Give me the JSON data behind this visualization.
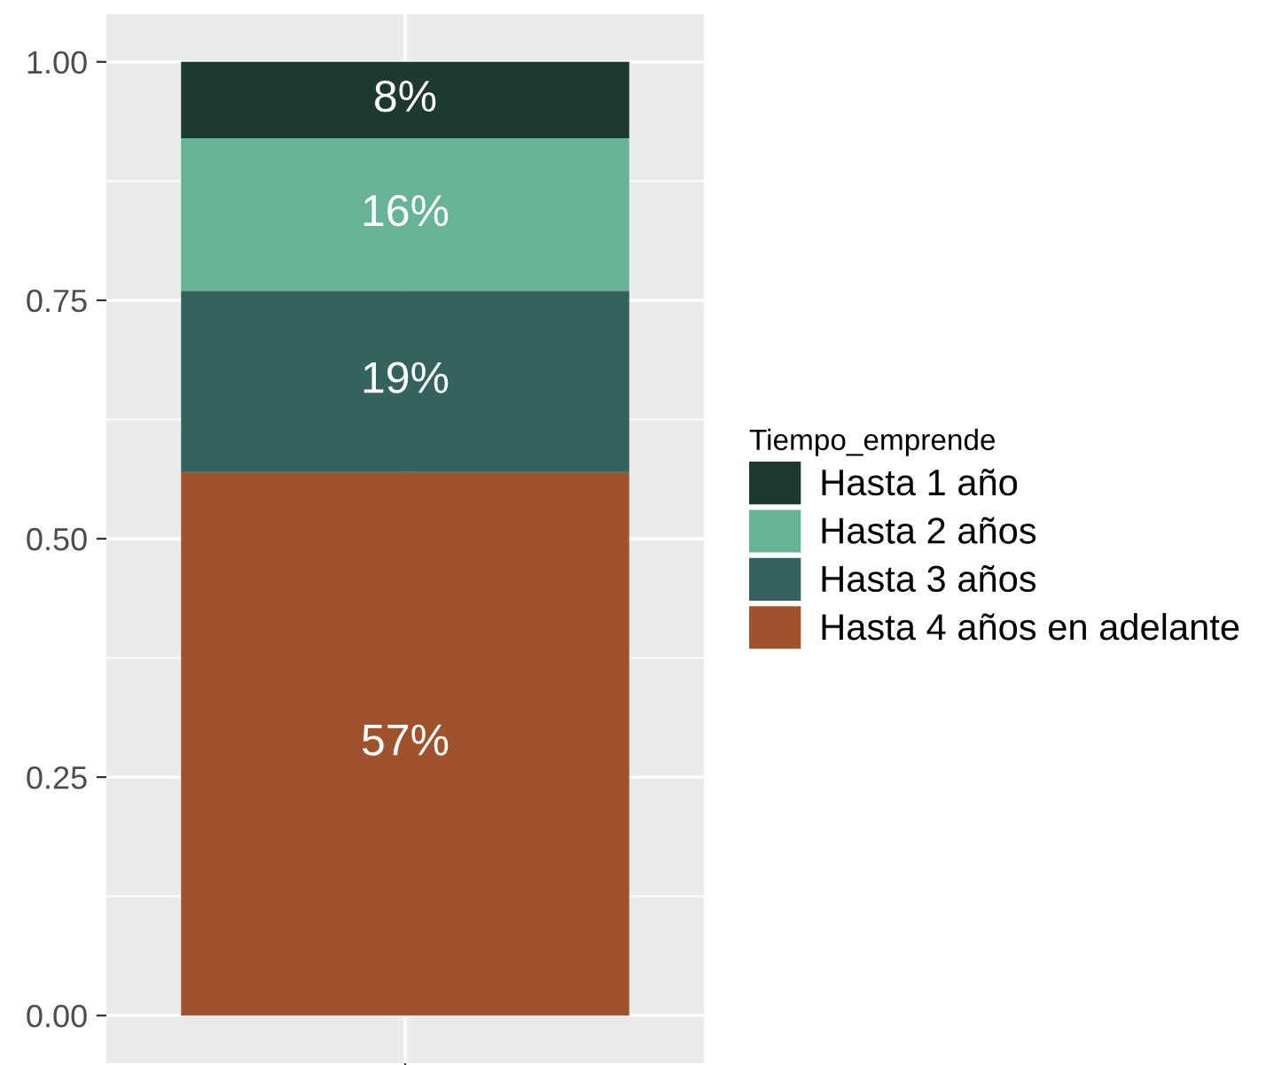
{
  "chart_data": {
    "type": "bar",
    "stacked": true,
    "categories": [
      null
    ],
    "series": [
      {
        "name": "Hasta 4 años en adelante",
        "color": "#a0522d",
        "values": [
          0.57
        ],
        "value_labels": [
          "57%"
        ]
      },
      {
        "name": "Hasta 3 años",
        "color": "#33635c",
        "values": [
          0.19
        ],
        "value_labels": [
          "19%"
        ]
      },
      {
        "name": "Hasta 2 años",
        "color": "#66b395",
        "values": [
          0.16
        ],
        "value_labels": [
          "16%"
        ]
      },
      {
        "name": "Hasta 1 año",
        "color": "#1e3932",
        "values": [
          0.08
        ],
        "value_labels": [
          "8%"
        ]
      }
    ],
    "ylim": [
      -0.05,
      1.05
    ],
    "yticks": [
      "1.00",
      "0.75",
      "0.50",
      "0.25",
      "0.00"
    ],
    "legend_title": "Tiempo_emprende",
    "legend": "right",
    "grid": true
  }
}
